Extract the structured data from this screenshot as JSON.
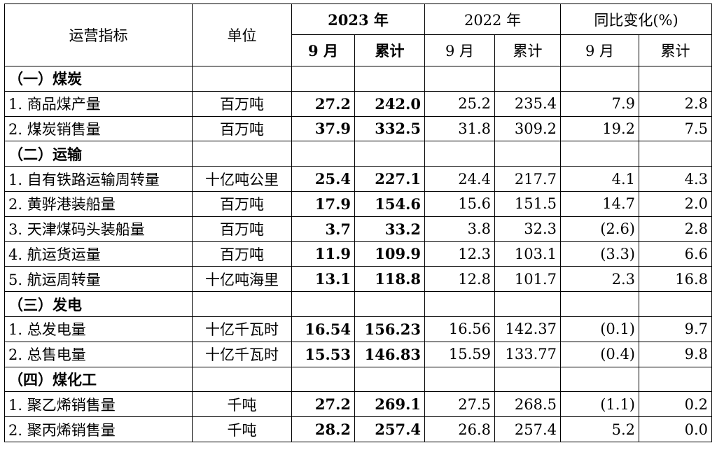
{
  "header": {
    "indicator": "运营指标",
    "unit": "单位",
    "y2023": "2023 年",
    "y2022": "2022 年",
    "yoy": "同比变化(%)",
    "sep": "9 月",
    "cum": "累计"
  },
  "rows": [
    {
      "section": true,
      "label": "（一）煤炭"
    },
    {
      "label": "1. 商品煤产量",
      "unit": "百万吨",
      "a": "27.2",
      "b": "242.0",
      "c": "25.2",
      "d": "235.4",
      "e": "7.9",
      "f": "2.8"
    },
    {
      "label": "2. 煤炭销售量",
      "unit": "百万吨",
      "a": "37.9",
      "b": "332.5",
      "c": "31.8",
      "d": "309.2",
      "e": "19.2",
      "f": "7.5"
    },
    {
      "section": true,
      "label": "（二）运输"
    },
    {
      "label": "1. 自有铁路运输周转量",
      "unit": "十亿吨公里",
      "a": "25.4",
      "b": "227.1",
      "c": "24.4",
      "d": "217.7",
      "e": "4.1",
      "f": "4.3"
    },
    {
      "label": "2. 黄骅港装船量",
      "unit": "百万吨",
      "a": "17.9",
      "b": "154.6",
      "c": "15.6",
      "d": "151.5",
      "e": "14.7",
      "f": "2.0"
    },
    {
      "label": "3. 天津煤码头装船量",
      "unit": "百万吨",
      "a": "3.7",
      "b": "33.2",
      "c": "3.8",
      "d": "32.3",
      "e": "(2.6)",
      "f": "2.8"
    },
    {
      "label": "4. 航运货运量",
      "unit": "百万吨",
      "a": "11.9",
      "b": "109.9",
      "c": "12.3",
      "d": "103.1",
      "e": "(3.3)",
      "f": "6.6"
    },
    {
      "label": "5. 航运周转量",
      "unit": "十亿吨海里",
      "a": "13.1",
      "b": "118.8",
      "c": "12.8",
      "d": "101.7",
      "e": "2.3",
      "f": "16.8"
    },
    {
      "section": true,
      "label": "（三）发电"
    },
    {
      "label": "1. 总发电量",
      "unit": "十亿千瓦时",
      "a": "16.54",
      "b": "156.23",
      "c": "16.56",
      "d": "142.37",
      "e": "(0.1)",
      "f": "9.7"
    },
    {
      "label": "2. 总售电量",
      "unit": "十亿千瓦时",
      "a": "15.53",
      "b": "146.83",
      "c": "15.59",
      "d": "133.77",
      "e": "(0.4)",
      "f": "9.8"
    },
    {
      "section": true,
      "label": "（四）煤化工"
    },
    {
      "label": "1. 聚乙烯销售量",
      "unit": "千吨",
      "a": "27.2",
      "b": "269.1",
      "c": "27.5",
      "d": "268.5",
      "e": "(1.1)",
      "f": "0.2"
    },
    {
      "label": "2. 聚丙烯销售量",
      "unit": "千吨",
      "a": "28.2",
      "b": "257.4",
      "c": "26.8",
      "d": "257.4",
      "e": "5.2",
      "f": "0.0"
    }
  ]
}
